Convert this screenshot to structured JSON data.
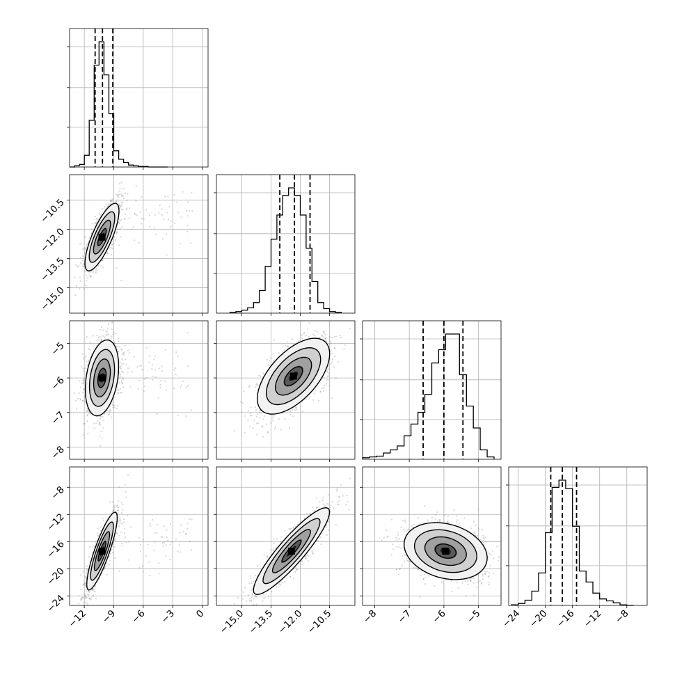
{
  "chart_data": {
    "type": "scatter",
    "style": {
      "grid": true,
      "hist_color": "#000000",
      "scatter_color": "#808080",
      "contour_color": "#000000",
      "quantile_line_style": "dashed"
    },
    "parameters": [
      {
        "range": [
          -13.5,
          0.6
        ],
        "ticks": [
          -12,
          -9,
          -6,
          -3,
          0
        ],
        "tick_labels": [
          "−12",
          "−9",
          "−6",
          "−3",
          "0"
        ],
        "quantiles": [
          -10.9,
          -10.15,
          -9.1
        ],
        "hist": {
          "edges": [
            -13.5,
            -13.0,
            -12.5,
            -12.0,
            -11.5,
            -11.0,
            -10.5,
            -10.0,
            -9.5,
            -9.0,
            -8.5,
            -8.0,
            -7.5,
            -7.0,
            -6.5,
            -6.0,
            -5.5,
            -5.0,
            -4.5,
            -4.0,
            -3.5
          ],
          "counts": [
            0,
            2,
            4,
            18,
            72,
            157,
            193,
            142,
            82,
            25,
            12,
            7,
            3,
            2,
            1,
            1,
            0,
            0,
            0,
            0
          ]
        }
      },
      {
        "range": [
          -16.3,
          -9.2
        ],
        "ticks": [
          -15.0,
          -13.5,
          -12.0,
          -10.5
        ],
        "tick_labels": [
          "−15.0",
          "−13.5",
          "−12.0",
          "−10.5"
        ],
        "quantiles": [
          -13.05,
          -12.3,
          -11.5
        ],
        "hist": {
          "edges": [
            -15.6,
            -15.3,
            -15.0,
            -14.7,
            -14.4,
            -14.1,
            -13.8,
            -13.5,
            -13.2,
            -12.9,
            -12.6,
            -12.3,
            -12.0,
            -11.7,
            -11.4,
            -11.1,
            -10.8,
            -10.5,
            -10.2,
            -9.9
          ],
          "counts": [
            1,
            2,
            4,
            7,
            14,
            30,
            62,
            98,
            130,
            156,
            166,
            156,
            130,
            86,
            42,
            14,
            6,
            2,
            1
          ]
        }
      },
      {
        "range": [
          -8.35,
          -4.35
        ],
        "ticks": [
          -8,
          -7,
          -6,
          -5
        ],
        "tick_labels": [
          "−8",
          "−7",
          "−6",
          "−5"
        ],
        "quantiles": [
          -6.6,
          -6.0,
          -5.45
        ],
        "hist": {
          "edges": [
            -8.35,
            -8.15,
            -7.95,
            -7.75,
            -7.55,
            -7.35,
            -7.15,
            -6.95,
            -6.75,
            -6.55,
            -6.35,
            -6.15,
            -5.95,
            -5.75,
            -5.55,
            -5.35,
            -5.15,
            -4.95,
            -4.75,
            -4.55
          ],
          "counts": [
            2,
            3,
            4,
            8,
            12,
            17,
            30,
            45,
            60,
            83,
            123,
            140,
            160,
            160,
            108,
            68,
            40,
            12,
            3
          ]
        }
      },
      {
        "range": [
          -25.4,
          -5.0
        ],
        "ticks": [
          -24,
          -20,
          -16,
          -12,
          -8
        ],
        "tick_labels": [
          "−24",
          "−20",
          "−16",
          "−12",
          "−8"
        ],
        "quantiles": [
          -19.2,
          -17.5,
          -15.4
        ],
        "hist": {
          "edges": [
            -25.0,
            -24.0,
            -23.0,
            -22.0,
            -21.0,
            -20.0,
            -19.0,
            -18.0,
            -17.0,
            -16.0,
            -15.0,
            -14.0,
            -13.0,
            -12.0,
            -11.0,
            -10.0,
            -9.0,
            -8.0,
            -7.0
          ],
          "counts": [
            1,
            3,
            8,
            22,
            50,
            112,
            182,
            193,
            180,
            122,
            53,
            36,
            19,
            10,
            7,
            4,
            1,
            0
          ]
        }
      }
    ],
    "pairs": [
      {
        "x": 0,
        "y": 1,
        "mean": [
          -10.2,
          -12.4
        ],
        "cov": [
          [
            0.75,
            0.58
          ],
          [
            0.58,
            0.75
          ]
        ],
        "extra_x_range": [
          -9.5,
          -1.0
        ],
        "extra_y": [
          -11.5,
          0.9
        ]
      },
      {
        "x": 0,
        "y": 2,
        "mean": [
          -10.2,
          -6.0
        ],
        "cov": [
          [
            0.72,
            0.14
          ],
          [
            0.14,
            0.3
          ]
        ],
        "extra_x_range": [
          -9.5,
          -1.0
        ],
        "extra_y": [
          -5.9,
          0.55
        ]
      },
      {
        "x": 1,
        "y": 2,
        "mean": [
          -12.35,
          -5.95
        ],
        "cov": [
          [
            0.86,
            0.3
          ],
          [
            0.3,
            0.3
          ]
        ],
        "extra_x_range": null,
        "extra_y": null
      },
      {
        "x": 0,
        "y": 3,
        "mean": [
          -10.2,
          -17.4
        ],
        "cov": [
          [
            0.6,
            1.9
          ],
          [
            1.9,
            8.2
          ]
        ],
        "extra_x_range": [
          -9.5,
          -1.0
        ],
        "extra_y": [
          -16.5,
          2.3
        ]
      },
      {
        "x": 1,
        "y": 3,
        "mean": [
          -12.45,
          -17.4
        ],
        "cov": [
          [
            0.95,
            2.8
          ],
          [
            2.8,
            10.2
          ]
        ],
        "extra_x_range": null,
        "extra_y": null
      },
      {
        "x": 2,
        "y": 3,
        "mean": [
          -5.95,
          -17.4
        ],
        "cov": [
          [
            0.36,
            -0.3
          ],
          [
            -0.3,
            4.4
          ]
        ],
        "extra_x_range": null,
        "extra_y": null
      }
    ]
  }
}
